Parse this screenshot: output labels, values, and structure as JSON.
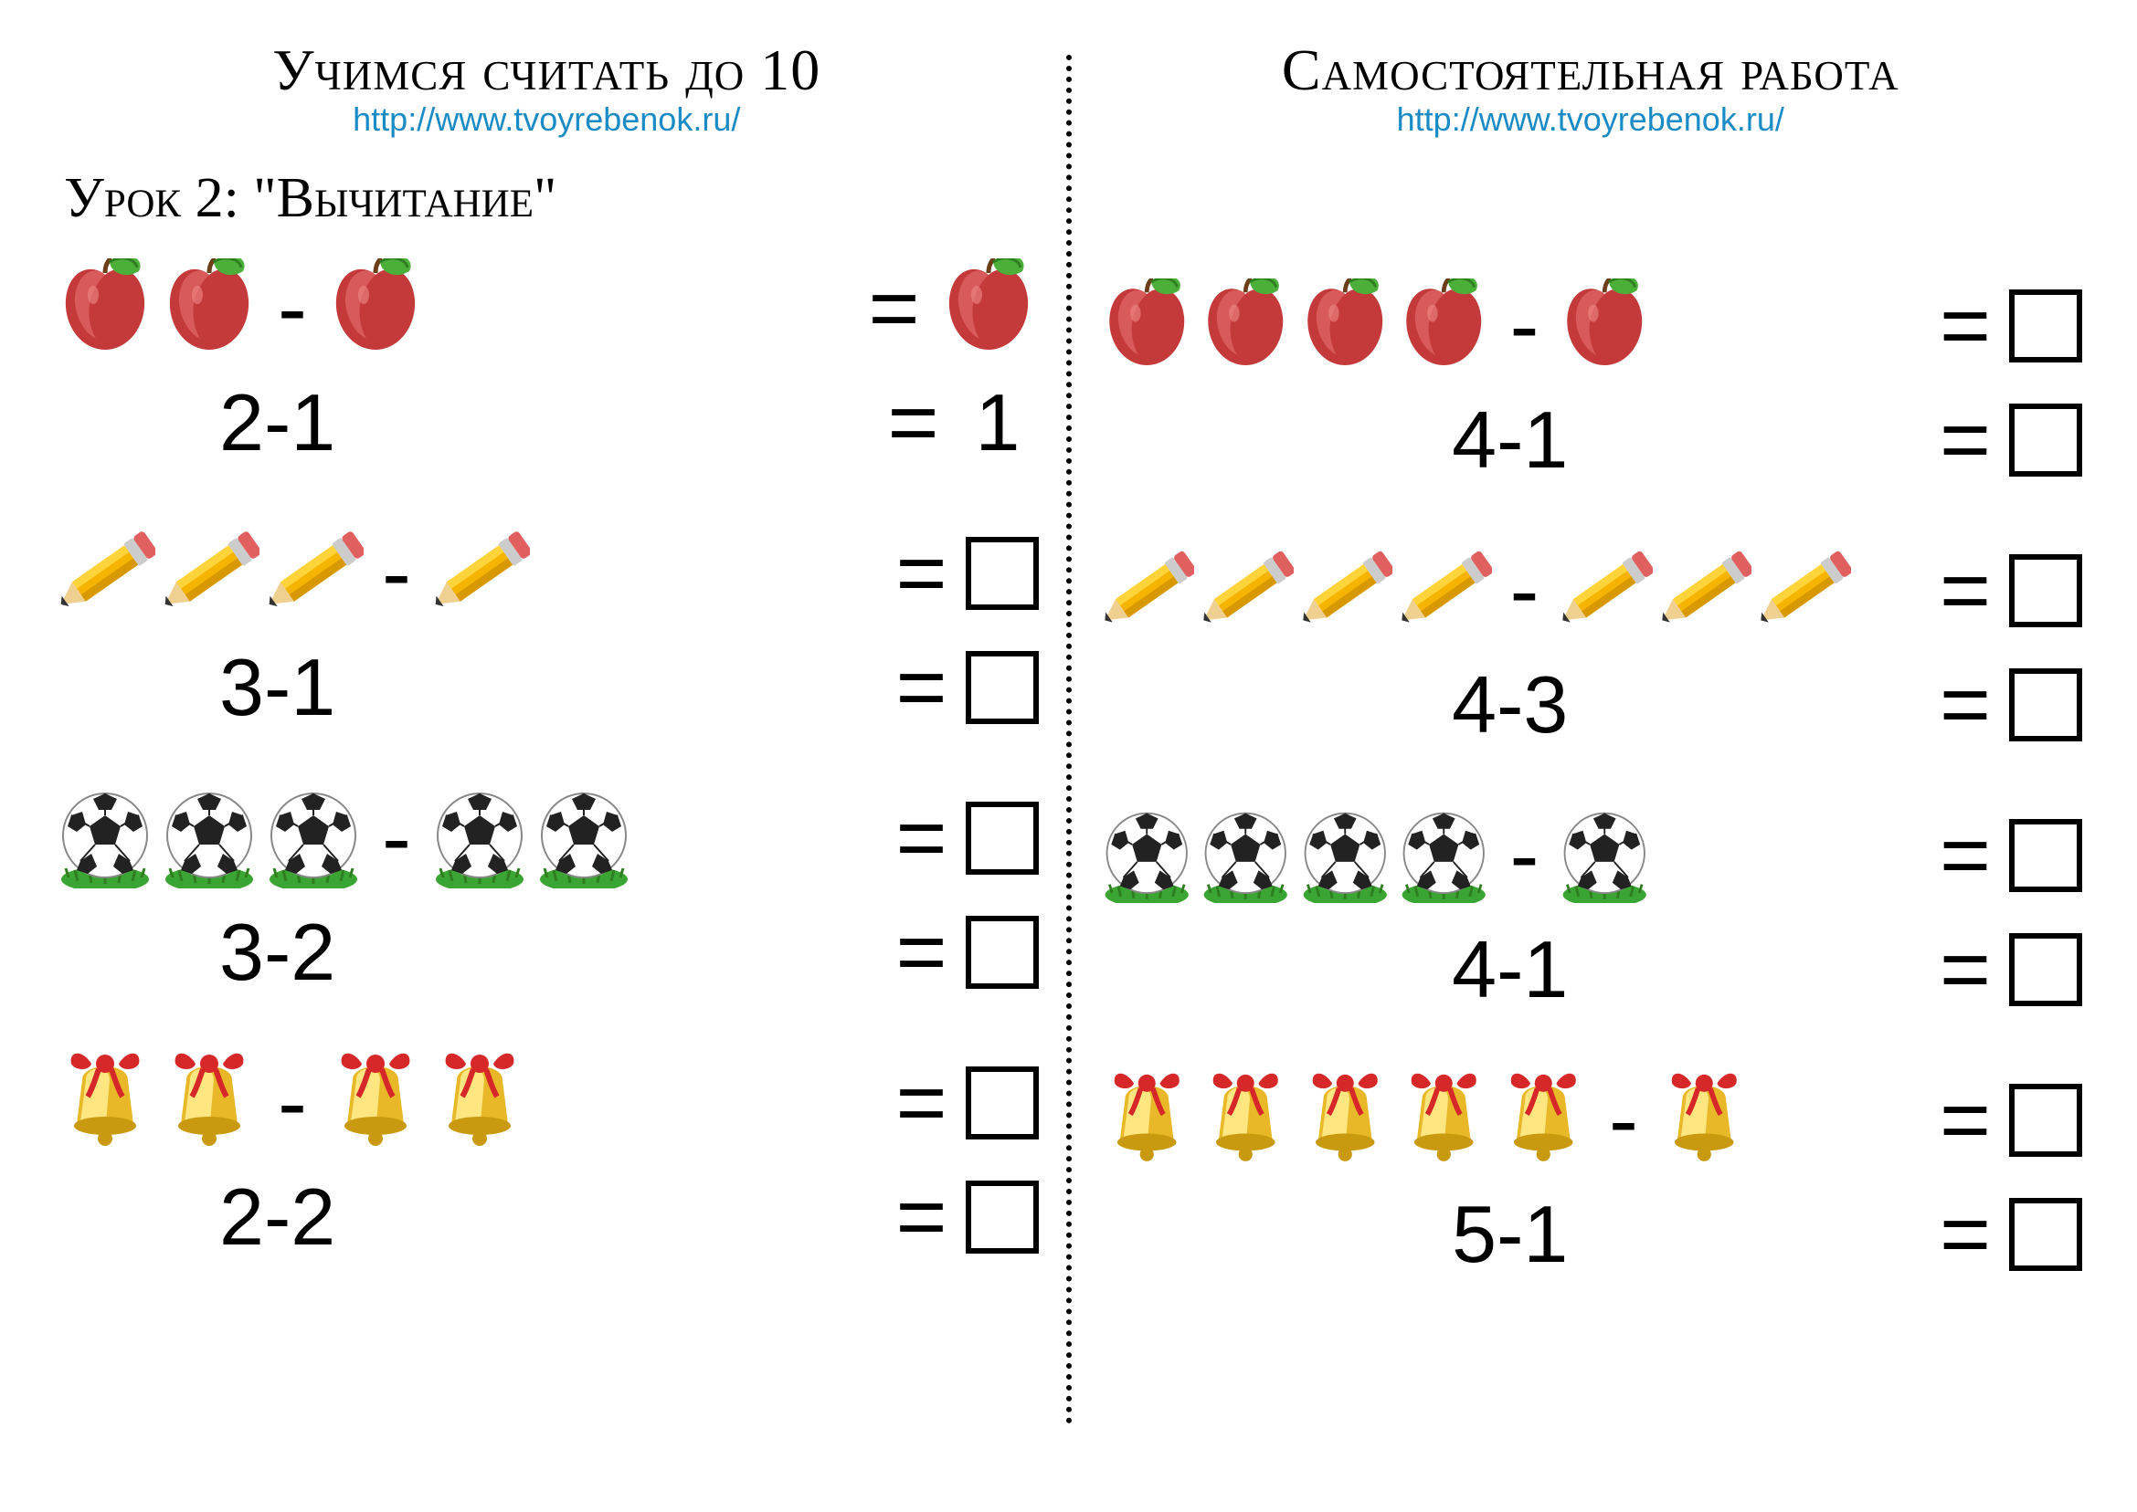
{
  "left": {
    "title": "Учимся считать до 10",
    "url": "http://www.tvoyrebenok.ru/",
    "lesson": "Урок 2: \"Вычитание\"",
    "problems": [
      {
        "icon": "apple",
        "a": 2,
        "b": 1,
        "expr": "2-1",
        "answer": "1",
        "show_answer": true
      },
      {
        "icon": "pencil",
        "a": 3,
        "b": 1,
        "expr": "3-1",
        "answer": null,
        "show_answer": false
      },
      {
        "icon": "ball",
        "a": 3,
        "b": 2,
        "expr": "3-2",
        "answer": null,
        "show_answer": false
      },
      {
        "icon": "bell",
        "a": 2,
        "b": 2,
        "expr": "2-2",
        "answer": null,
        "show_answer": false
      }
    ]
  },
  "right": {
    "title": "Самостоятельная работа",
    "url": "http://www.tvoyrebenok.ru/",
    "problems": [
      {
        "icon": "apple",
        "a": 4,
        "b": 1,
        "expr": "4-1",
        "answer": null,
        "show_answer": false
      },
      {
        "icon": "pencil",
        "a": 4,
        "b": 3,
        "expr": "4-3",
        "answer": null,
        "show_answer": false
      },
      {
        "icon": "ball",
        "a": 4,
        "b": 1,
        "expr": "4-1",
        "answer": null,
        "show_answer": false
      },
      {
        "icon": "bell",
        "a": 5,
        "b": 1,
        "expr": "5-1",
        "answer": null,
        "show_answer": false
      }
    ]
  },
  "style": {
    "colors": {
      "apple_body": "#c43a3a",
      "apple_highlight": "#d95a5a",
      "apple_leaf": "#4caf3a",
      "apple_leaf_dark": "#2e7d1f",
      "pencil_body": "#f5b400",
      "pencil_body_light": "#ffd33a",
      "pencil_tip": "#f0d090",
      "pencil_lead": "#333333",
      "pencil_ferrule": "#cccccc",
      "pencil_eraser": "#e06060",
      "ball_white": "#ffffff",
      "ball_black": "#222222",
      "ball_grass": "#3aa532",
      "bell_gold": "#e8b828",
      "bell_gold_light": "#ffe680",
      "bell_ribbon": "#d62828",
      "url_color": "#1a8bc4",
      "text": "#000000",
      "bg": "#ffffff",
      "border": "#000000"
    },
    "icon_size": 110,
    "title_fontsize": 64,
    "url_fontsize": 36,
    "lesson_fontsize": 62,
    "expr_fontsize": 88,
    "op_fontsize": 96,
    "box_size": 80,
    "box_border": 6
  }
}
